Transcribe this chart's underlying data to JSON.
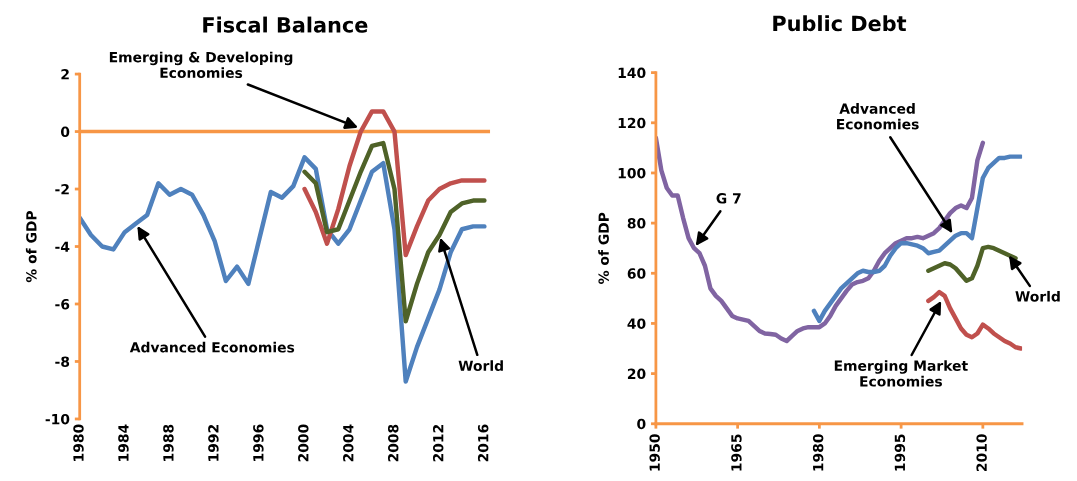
{
  "chart_data": [
    {
      "type": "line",
      "title": "Fiscal Balance",
      "ylabel": "% of GDP",
      "x": [
        1980,
        1981,
        1982,
        1983,
        1984,
        1985,
        1986,
        1987,
        1988,
        1989,
        1990,
        1991,
        1992,
        1993,
        1994,
        1995,
        1996,
        1997,
        1998,
        1999,
        2000,
        2001,
        2002,
        2003,
        2004,
        2005,
        2006,
        2007,
        2008,
        2009,
        2010,
        2011,
        2012,
        2013,
        2014,
        2015,
        2016
      ],
      "series": [
        {
          "color": "#4f81bd",
          "values": [
            -3.0,
            -3.6,
            -4.0,
            -4.1,
            -3.5,
            -3.2,
            -2.9,
            -1.8,
            -2.2,
            -2.0,
            -2.2,
            -2.9,
            -3.8,
            -5.2,
            -4.7,
            -5.3,
            -3.7,
            -2.1,
            -2.3,
            -1.9,
            -0.9,
            -1.3,
            -3.4,
            -3.9,
            -3.4,
            -2.4,
            -1.4,
            -1.1,
            -3.4,
            -8.7,
            -7.5,
            -6.5,
            -5.5,
            -4.2,
            -3.4,
            -3.3,
            -3.3
          ]
        },
        {
          "color": "#c0504d",
          "x": [
            2000,
            2001,
            2002,
            2003,
            2004,
            2005,
            2006,
            2007,
            2008,
            2009,
            2010,
            2011,
            2012,
            2013,
            2014,
            2015,
            2016
          ],
          "values": [
            -2.0,
            -2.8,
            -3.9,
            -2.7,
            -1.2,
            0.0,
            0.7,
            0.7,
            0.0,
            -4.3,
            -3.3,
            -2.4,
            -2.0,
            -1.8,
            -1.7,
            -1.7,
            -1.7
          ]
        },
        {
          "color": "#4f6228",
          "x": [
            2000,
            2001,
            2002,
            2003,
            2004,
            2005,
            2006,
            2007,
            2008,
            2009,
            2010,
            2011,
            2012,
            2013,
            2014,
            2015,
            2016
          ],
          "values": [
            -1.4,
            -1.8,
            -3.5,
            -3.4,
            -2.4,
            -1.4,
            -0.5,
            -0.4,
            -2.0,
            -6.6,
            -5.3,
            -4.2,
            -3.6,
            -2.8,
            -2.5,
            -2.4,
            -2.4
          ]
        }
      ],
      "xlim": [
        1980,
        2016.5
      ],
      "xticks": [
        1980,
        1984,
        1988,
        1992,
        1996,
        2000,
        2004,
        2008,
        2012,
        2016
      ],
      "ylim": [
        -10,
        2
      ],
      "yticks": [
        -10,
        -8,
        -6,
        -4,
        -2,
        0,
        2
      ],
      "ref_lines": [
        {
          "axis": "y",
          "value": 0,
          "color": "#f79646"
        }
      ],
      "grid": false,
      "legend": false,
      "annotations": [
        {
          "text": "Emerging & Developing\nEconomies",
          "x": 2005,
          "y": 0.1
        },
        {
          "text": "Advanced Economies",
          "x": 1985,
          "y": -3.2
        },
        {
          "text": "World",
          "x": 2012,
          "y": -3.6
        }
      ]
    },
    {
      "type": "line",
      "title": "Public Debt",
      "ylabel": "% of GDP",
      "x": [
        1950,
        1951,
        1952,
        1953,
        1954,
        1955,
        1956,
        1957,
        1958,
        1959,
        1960,
        1961,
        1962,
        1963,
        1964,
        1965,
        1966,
        1967,
        1968,
        1969,
        1970,
        1971,
        1972,
        1973,
        1974,
        1975,
        1976,
        1977,
        1978,
        1979,
        1980,
        1981,
        1982,
        1983,
        1984,
        1985,
        1986,
        1987,
        1988,
        1989,
        1990,
        1991,
        1992,
        1993,
        1994,
        1995,
        1996,
        1997,
        1998,
        1999,
        2000,
        2001,
        2002,
        2003,
        2004,
        2005,
        2006,
        2007,
        2008,
        2009,
        2010
      ],
      "series": [
        {
          "color": "#8064a2",
          "values": [
            114,
            101,
            94,
            91,
            91,
            82,
            74,
            70,
            68,
            63,
            54,
            51,
            49,
            46,
            43,
            42,
            41.5,
            41,
            39,
            37,
            36,
            35.8,
            35.5,
            34,
            33,
            35,
            37,
            38,
            38.5,
            38.5,
            38.5,
            40,
            43,
            47,
            50,
            53,
            55.5,
            56.5,
            57,
            58,
            61,
            65,
            68,
            70,
            72,
            73,
            74,
            74,
            74.5,
            74,
            75,
            76,
            78,
            81,
            84,
            86,
            87,
            86,
            90,
            105,
            112
          ]
        },
        {
          "color": "#4f81bd",
          "x": [
            1979,
            1980,
            1981,
            1982,
            1983,
            1984,
            1985,
            1986,
            1987,
            1988,
            1989,
            1990,
            1991,
            1992,
            1993,
            1994,
            1995,
            1996,
            1997,
            1998,
            1999,
            2000,
            2001,
            2002,
            2003,
            2004,
            2005,
            2006,
            2007,
            2008,
            2009,
            2010,
            2011,
            2012,
            2013,
            2014,
            2015,
            2016,
            2017
          ],
          "values": [
            45,
            41,
            45,
            48,
            51,
            54,
            56,
            58,
            60,
            61,
            60.5,
            60.5,
            61,
            63,
            67,
            70,
            72,
            72,
            71.5,
            71,
            70,
            68,
            68.5,
            69,
            71,
            73,
            75,
            76,
            76,
            74,
            86,
            98,
            102,
            104,
            106,
            106,
            106.5,
            106.5,
            106.5
          ]
        },
        {
          "color": "#4f6228",
          "x": [
            2000,
            2001,
            2002,
            2003,
            2004,
            2005,
            2006,
            2007,
            2008,
            2009,
            2010,
            2011,
            2012,
            2013,
            2014,
            2015,
            2016
          ],
          "values": [
            61,
            62,
            63,
            64,
            63.5,
            62,
            59.5,
            57,
            58,
            63,
            70,
            70.5,
            70,
            69,
            68,
            67,
            66
          ]
        },
        {
          "color": "#c0504d",
          "x": [
            2000,
            2001,
            2002,
            2003,
            2004,
            2005,
            2006,
            2007,
            2008,
            2009,
            2010,
            2011,
            2012,
            2013,
            2014,
            2015,
            2016,
            2017
          ],
          "values": [
            49,
            50.5,
            52.5,
            51,
            46,
            42,
            38,
            35.5,
            34.5,
            36,
            39.5,
            38,
            36,
            34.5,
            33,
            32,
            30.5,
            30
          ]
        }
      ],
      "xlim": [
        1950,
        2017.2
      ],
      "xticks": [
        1950,
        1965,
        1980,
        1995,
        2010
      ],
      "ylim": [
        0,
        140
      ],
      "yticks": [
        0,
        20,
        40,
        60,
        80,
        100,
        120,
        140
      ],
      "grid": false,
      "legend": false,
      "annotations": [
        {
          "text": "G 7",
          "x": 1957,
          "y": 70
        },
        {
          "text": "Advanced\nEconomies",
          "x": 2004.7,
          "y": 75
        },
        {
          "text": "World",
          "x": 2014.5,
          "y": 68
        },
        {
          "text": "Emerging Market\nEconomies",
          "x": 2002.6,
          "y": 50
        }
      ]
    }
  ]
}
